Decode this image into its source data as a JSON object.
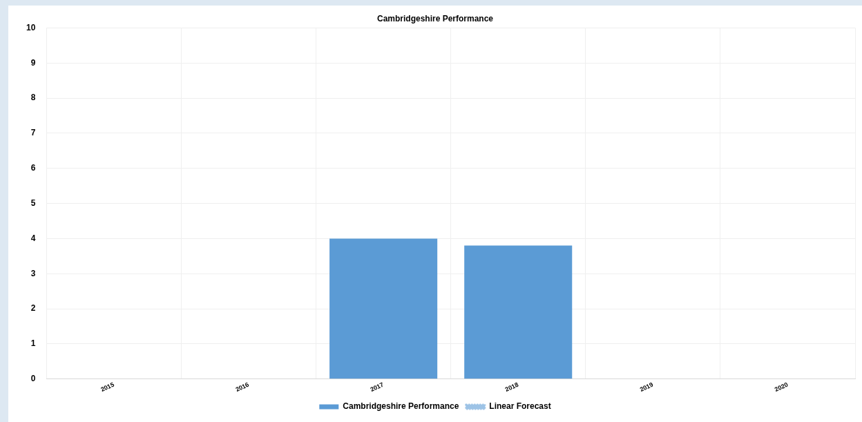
{
  "chart_data": {
    "type": "bar",
    "title": "Cambridgeshire Performance",
    "categories": [
      "2015",
      "2016",
      "2017",
      "2018",
      "2019",
      "2020"
    ],
    "series": [
      {
        "name": "Cambridgeshire Performance",
        "color": "#5b9bd5",
        "values": [
          null,
          null,
          4,
          3.8,
          null,
          null
        ]
      },
      {
        "name": "Linear Forecast",
        "type": "line",
        "line_style": "dotted",
        "color": "#9dc3e6",
        "values": [
          null,
          null,
          null,
          null,
          null,
          null
        ]
      }
    ],
    "ylim": [
      0,
      10
    ],
    "yticks": [
      0,
      1,
      2,
      3,
      4,
      5,
      6,
      7,
      8,
      9,
      10
    ],
    "grid": true,
    "legend": "bottom"
  }
}
